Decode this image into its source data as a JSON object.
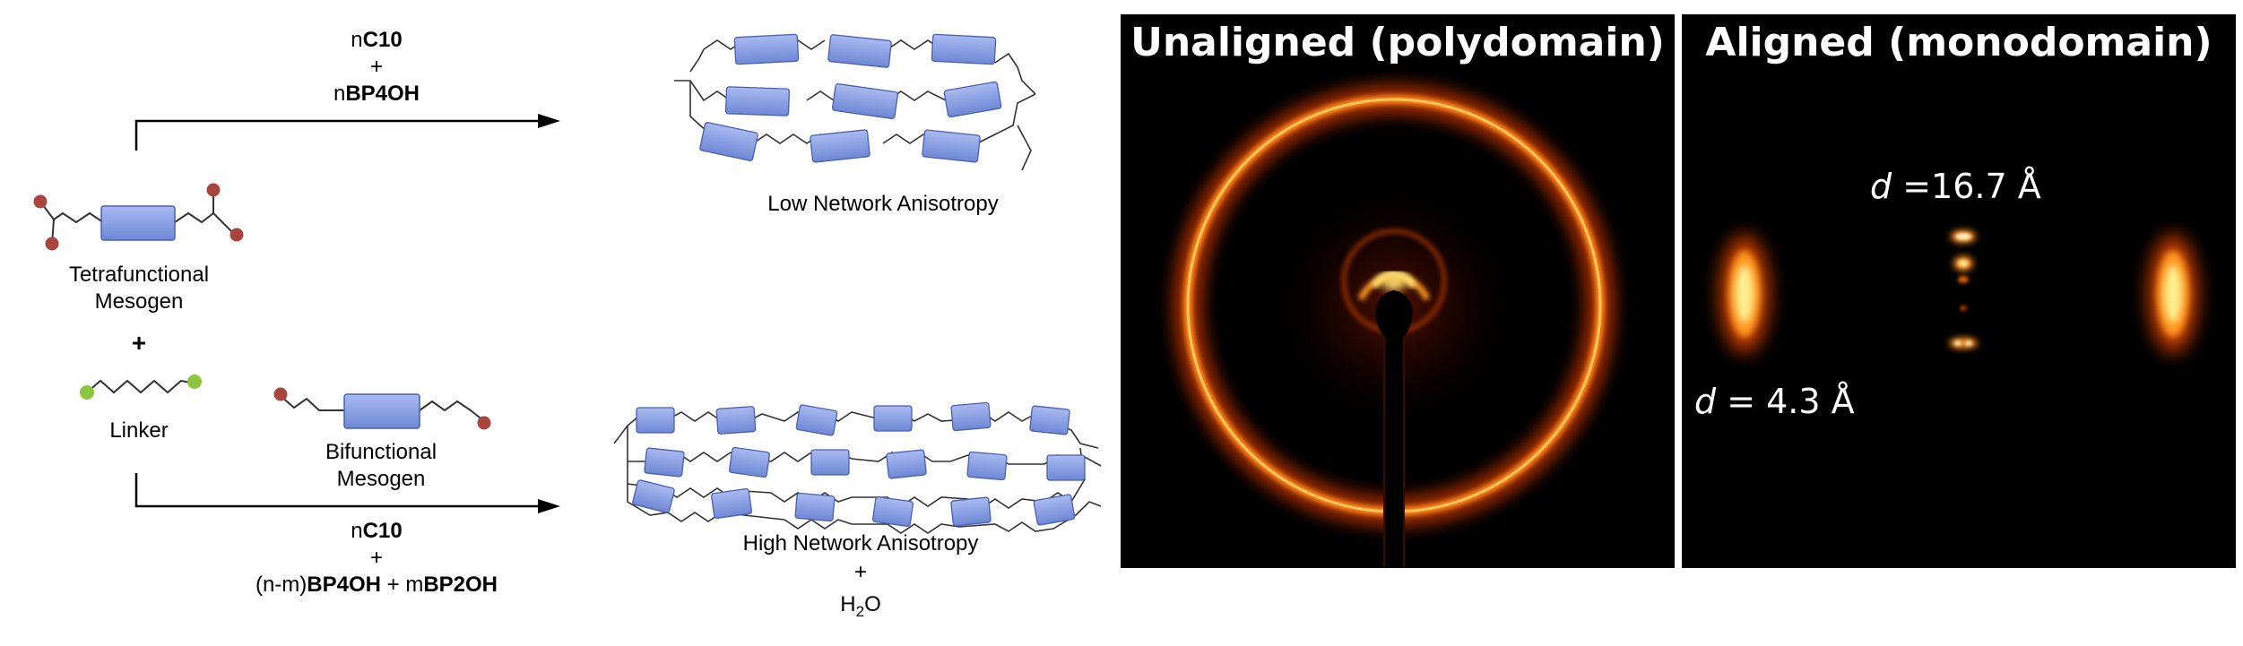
{
  "reaction": {
    "top_conditions": {
      "line1_prefix": "n",
      "line1_bold": "C10",
      "line2": "+",
      "line3_prefix": "n",
      "line3_bold": "BP4OH"
    },
    "bottom_conditions": {
      "line1_prefix": "n",
      "line1_bold": "C10",
      "line2": "+",
      "line3_part1": "(n-m)",
      "line3_part2_bold": "BP4OH",
      "line3_part3": " + m",
      "line3_part4_bold": "BP2OH"
    },
    "tetrafunctional_label_line1": "Tetrafunctional",
    "tetrafunctional_label_line2": "Mesogen",
    "plus": "+",
    "linker_label": "Linker",
    "bifunctional_label_line1": "Bifunctional",
    "bifunctional_label_line2": "Mesogen",
    "low_network_label": "Low Network Anisotropy",
    "high_network_label": "High Network Anisotropy",
    "byproduct_plus": "+",
    "byproduct_main": "H",
    "byproduct_sub": "2",
    "byproduct_end": "O"
  },
  "xray": {
    "unaligned": {
      "title": "Unaligned (polydomain)"
    },
    "aligned": {
      "title": "Aligned (monodomain)",
      "d_large_symbol": "d",
      "d_large_value": " =16.7 Å",
      "d_small_symbol": "d",
      "d_small_value": " = 4.3 Å"
    }
  },
  "colors": {
    "mesogen_fill": "#7f98de",
    "mesogen_stroke": "#4a5fb0",
    "red_end": "#a8453f",
    "green_end": "#8cc63f",
    "ring_outer": "#ff9a1e",
    "ring_core": "#ffe070",
    "arrow": "#000000"
  }
}
